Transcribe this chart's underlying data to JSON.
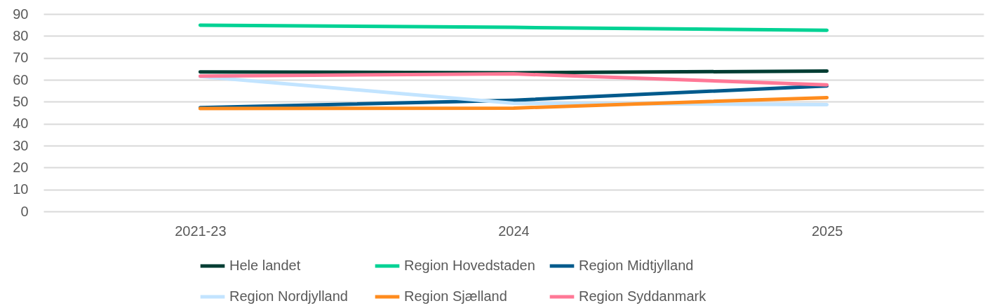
{
  "chart_data": {
    "type": "line",
    "categories": [
      "2021-23",
      "2024",
      "2025"
    ],
    "series": [
      {
        "name": "Hele landet",
        "color": "#003d33",
        "values": [
          63.6,
          63.2,
          64.0
        ]
      },
      {
        "name": "Region Hovedstaden",
        "color": "#00d294",
        "values": [
          84.9,
          83.9,
          82.6
        ]
      },
      {
        "name": "Region Midtjylland",
        "color": "#005a8c",
        "values": [
          47.3,
          50.7,
          57.2
        ]
      },
      {
        "name": "Region Nordjylland",
        "color": "#c2e4ff",
        "values": [
          61.5,
          49.3,
          48.7
        ]
      },
      {
        "name": "Region Sjælland",
        "color": "#ff8c1e",
        "values": [
          46.9,
          47.1,
          51.9
        ]
      },
      {
        "name": "Region Syddanmark",
        "color": "#ff7896",
        "values": [
          61.7,
          62.7,
          57.7
        ]
      }
    ],
    "ylim": [
      0,
      90
    ],
    "yticks": [
      0,
      10,
      20,
      30,
      40,
      50,
      60,
      70,
      80,
      90
    ],
    "grid": "y",
    "legend": "bottom",
    "marker": "none",
    "line_style": "solid"
  }
}
